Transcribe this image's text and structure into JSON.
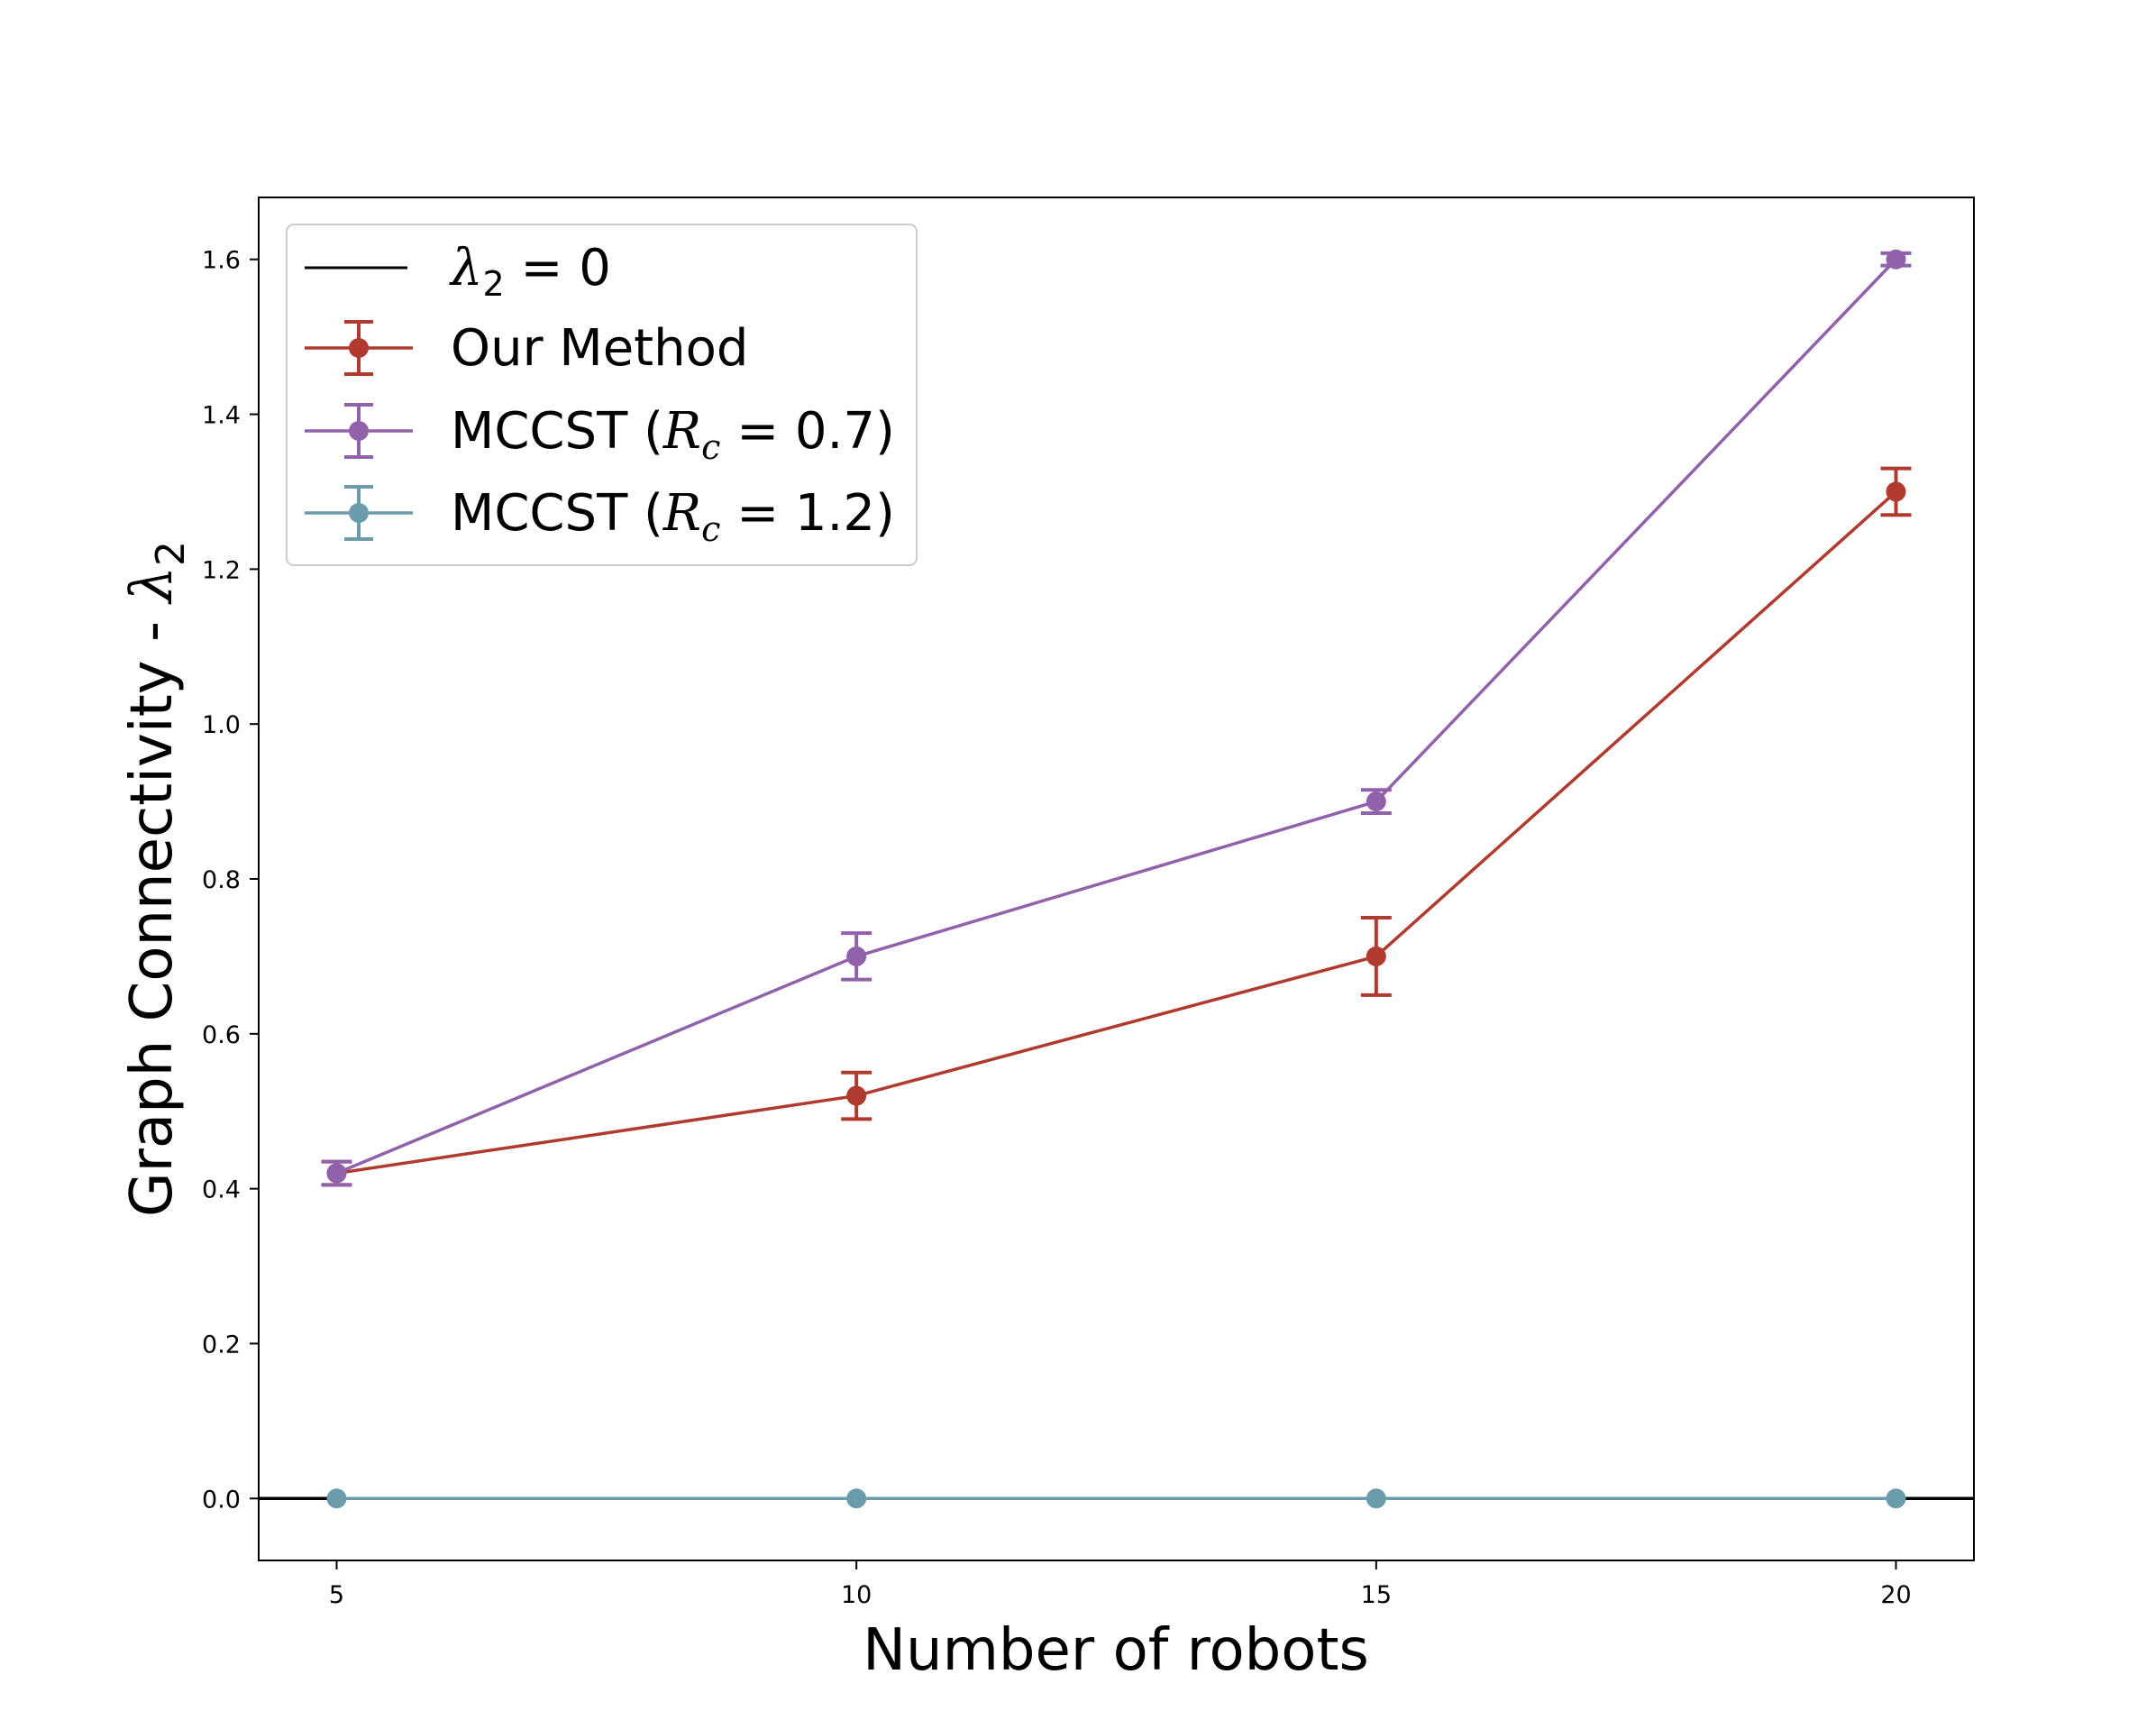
{
  "chart_data": {
    "type": "line",
    "xlabel": "Number of robots",
    "ylabel_text": "Graph Connectivity - ",
    "ylabel_symbol": "λ",
    "ylabel_sub": "2",
    "x": [
      5,
      10,
      15,
      20
    ],
    "xticks": [
      "5",
      "10",
      "15",
      "20"
    ],
    "yticks": [
      "0.0",
      "0.2",
      "0.4",
      "0.6",
      "0.8",
      "1.0",
      "1.2",
      "1.4",
      "1.6"
    ],
    "ytick_values": [
      0,
      0.2,
      0.4,
      0.6,
      0.8,
      1.0,
      1.2,
      1.4,
      1.6
    ],
    "xlim": [
      4.25,
      20.75
    ],
    "ylim": [
      -0.08,
      1.68
    ],
    "grid": false,
    "legend_position": "top-left",
    "reference_line": {
      "y": 0,
      "color": "#000000",
      "legend_symbol": "λ",
      "legend_sub": "2",
      "legend_rest": " = 0"
    },
    "series": [
      {
        "name": "Our Method",
        "color": "#b03a2e",
        "values": [
          0.42,
          0.52,
          0.7,
          1.3
        ],
        "errors": [
          0.015,
          0.03,
          0.05,
          0.03
        ]
      },
      {
        "name": "MCCST (",
        "name_math": "R",
        "name_sub": "c",
        "name_rest": " = 0.7)",
        "color": "#9261ab",
        "values": [
          0.42,
          0.7,
          0.9,
          1.6
        ],
        "errors": [
          0.015,
          0.03,
          0.015,
          0.008
        ]
      },
      {
        "name": "MCCST (",
        "name_math": "R",
        "name_sub": "c",
        "name_rest": " = 1.2)",
        "color": "#6a9cab",
        "values": [
          0.0,
          0.0,
          0.0,
          0.0
        ],
        "errors": [
          0,
          0,
          0,
          0
        ]
      }
    ]
  }
}
